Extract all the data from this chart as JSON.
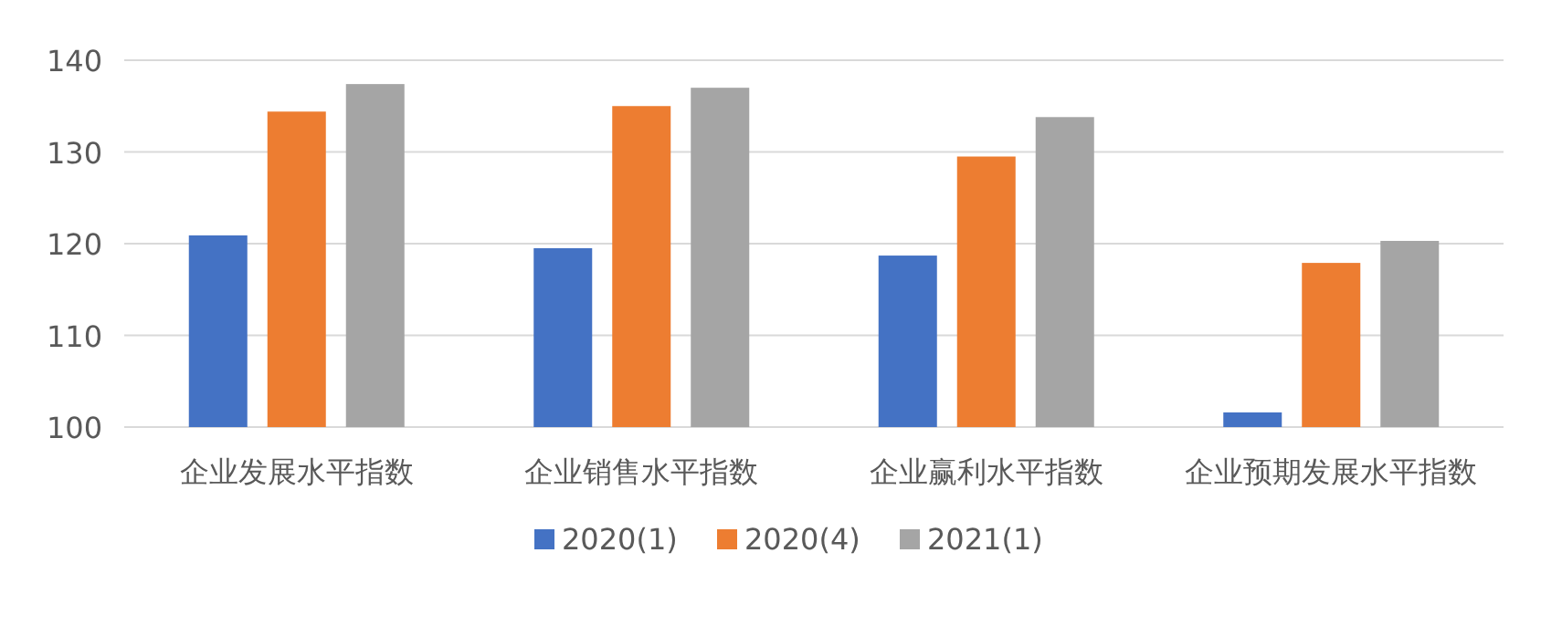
{
  "chart_data": {
    "type": "bar",
    "categories": [
      "企业发展水平指数",
      "企业销售水平指数",
      "企业赢利水平指数",
      "企业预期发展水平指数"
    ],
    "series": [
      {
        "name": "2020(1)",
        "color": "#4472c4",
        "values": [
          120.9,
          119.5,
          118.7,
          101.6
        ]
      },
      {
        "name": "2020(4)",
        "color": "#ed7d31",
        "values": [
          134.4,
          135.0,
          129.5,
          117.9
        ]
      },
      {
        "name": "2021(1)",
        "color": "#a5a5a5",
        "values": [
          137.4,
          137.0,
          133.8,
          120.3
        ]
      }
    ],
    "ylim": [
      100,
      140
    ],
    "yticks": [
      100,
      110,
      120,
      130,
      140
    ],
    "grid": "y",
    "legend": "bottom"
  }
}
